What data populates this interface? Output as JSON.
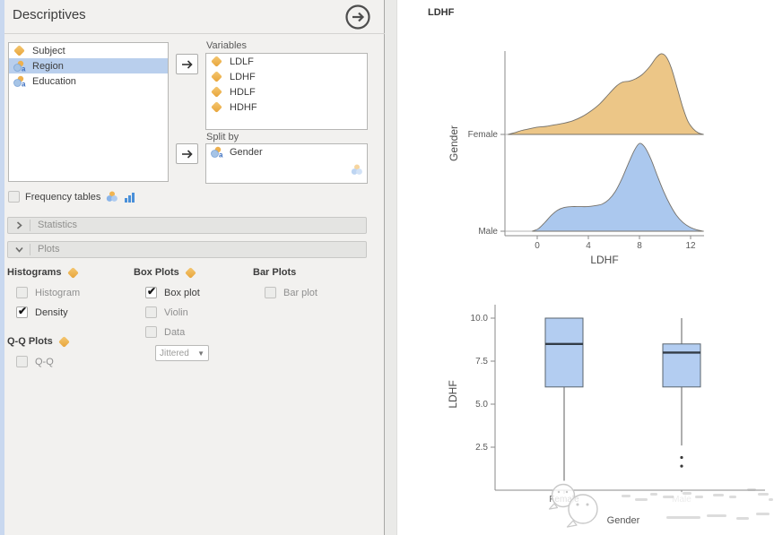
{
  "panel": {
    "title": "Descriptives",
    "source_list": [
      {
        "label": "Subject",
        "type": "continuous",
        "selected": false
      },
      {
        "label": "Region",
        "type": "nominal",
        "selected": true
      },
      {
        "label": "Education",
        "type": "nominal",
        "selected": false
      }
    ],
    "variables": {
      "label": "Variables",
      "items": [
        {
          "label": "LDLF",
          "type": "continuous"
        },
        {
          "label": "LDHF",
          "type": "continuous"
        },
        {
          "label": "HDLF",
          "type": "continuous"
        },
        {
          "label": "HDHF",
          "type": "continuous"
        }
      ]
    },
    "split_by": {
      "label": "Split by",
      "items": [
        {
          "label": "Gender",
          "type": "nominal"
        }
      ]
    },
    "frequency_tables": {
      "label": "Frequency tables",
      "checked": false
    },
    "sections": [
      {
        "label": "Statistics",
        "expanded": false
      },
      {
        "label": "Plots",
        "expanded": true
      }
    ],
    "plots": {
      "histograms": {
        "title": "Histograms",
        "options": [
          {
            "label": "Histogram",
            "checked": false
          },
          {
            "label": "Density",
            "checked": true
          }
        ]
      },
      "box_plots": {
        "title": "Box Plots",
        "options": [
          {
            "label": "Box plot",
            "checked": true
          },
          {
            "label": "Violin",
            "checked": false
          },
          {
            "label": "Data",
            "checked": false
          }
        ],
        "dropdown_value": "Jittered"
      },
      "bar_plots": {
        "title": "Bar Plots",
        "options": [
          {
            "label": "Bar plot",
            "checked": false
          }
        ]
      },
      "qq_plots": {
        "title": "Q-Q Plots",
        "options": [
          {
            "label": "Q-Q",
            "checked": false
          }
        ]
      }
    }
  },
  "results": {
    "section_title": "LDHF"
  },
  "colors": {
    "female_fill": "#ecc687",
    "male_fill": "#abc8ee",
    "curve_stroke": "#75716a",
    "box_fill": "#b3cdf1",
    "box_stroke": "#5a646e",
    "median_stroke": "#333c47",
    "axis": "#8a8a8a",
    "tick_text": "#5a5a5a",
    "selection": "#b9cfed",
    "accent_strip": "#c9d8ef",
    "panel_bg": "#f2f1ef",
    "icon_orange": "#e9a63c",
    "icon_blue": "#7fa6d7"
  },
  "chart_data": [
    {
      "type": "area",
      "subtype": "density-ridgeline",
      "title": "LDHF",
      "xlabel": "LDHF",
      "ylabel": "Gender",
      "x_ticks": [
        0,
        4,
        8,
        12
      ],
      "xlim": [
        -2.5,
        13.2
      ],
      "legend_position": "none",
      "grid": false,
      "series": [
        {
          "name": "Female",
          "color": "#ecc687",
          "points": [
            [
              -2.3,
              0
            ],
            [
              -1.8,
              0.02
            ],
            [
              -1.2,
              0.05
            ],
            [
              -0.6,
              0.07
            ],
            [
              0,
              0.09
            ],
            [
              0.7,
              0.1
            ],
            [
              1.4,
              0.12
            ],
            [
              2.1,
              0.14
            ],
            [
              2.8,
              0.17
            ],
            [
              3.5,
              0.22
            ],
            [
              4.2,
              0.29
            ],
            [
              4.9,
              0.38
            ],
            [
              5.6,
              0.5
            ],
            [
              6.2,
              0.6
            ],
            [
              6.7,
              0.65
            ],
            [
              7.2,
              0.66
            ],
            [
              7.7,
              0.69
            ],
            [
              8.2,
              0.74
            ],
            [
              8.8,
              0.84
            ],
            [
              9.3,
              0.95
            ],
            [
              9.7,
              1.0
            ],
            [
              10.1,
              0.96
            ],
            [
              10.5,
              0.82
            ],
            [
              11,
              0.55
            ],
            [
              11.4,
              0.33
            ],
            [
              11.8,
              0.16
            ],
            [
              12.2,
              0.07
            ],
            [
              12.6,
              0.02
            ],
            [
              13,
              0
            ]
          ]
        },
        {
          "name": "Male",
          "color": "#abc8ee",
          "points": [
            [
              -0.4,
              0
            ],
            [
              0.1,
              0.03
            ],
            [
              0.6,
              0.1
            ],
            [
              1.1,
              0.18
            ],
            [
              1.6,
              0.24
            ],
            [
              2.1,
              0.27
            ],
            [
              2.7,
              0.28
            ],
            [
              3.3,
              0.28
            ],
            [
              3.9,
              0.28
            ],
            [
              4.5,
              0.29
            ],
            [
              5.1,
              0.31
            ],
            [
              5.6,
              0.36
            ],
            [
              6.1,
              0.45
            ],
            [
              6.6,
              0.59
            ],
            [
              7.1,
              0.76
            ],
            [
              7.6,
              0.92
            ],
            [
              8.0,
              1.0
            ],
            [
              8.4,
              0.96
            ],
            [
              8.9,
              0.82
            ],
            [
              9.4,
              0.63
            ],
            [
              9.9,
              0.45
            ],
            [
              10.4,
              0.3
            ],
            [
              10.9,
              0.18
            ],
            [
              11.4,
              0.1
            ],
            [
              11.9,
              0.05
            ],
            [
              12.4,
              0.02
            ],
            [
              13,
              0
            ]
          ]
        }
      ]
    },
    {
      "type": "boxplot",
      "xlabel": "Gender",
      "ylabel": "LDHF",
      "categories": [
        "Female",
        "Male"
      ],
      "y_ticks": [
        2.5,
        5.0,
        7.5,
        10.0
      ],
      "y_tick_labels": [
        "2.5",
        "5.0",
        "7.5",
        "10.0"
      ],
      "ylim": [
        0,
        10.8
      ],
      "boxes": [
        {
          "category": "Female",
          "q1": 6.0,
          "median": 8.5,
          "q3": 10.0,
          "whisker_low": 0.55,
          "whisker_high": 10.0,
          "outliers": []
        },
        {
          "category": "Male",
          "q1": 6.0,
          "median": 8.0,
          "q3": 8.5,
          "whisker_low": 2.6,
          "whisker_high": 10.0,
          "outliers": [
            1.9,
            1.4
          ]
        }
      ]
    }
  ]
}
